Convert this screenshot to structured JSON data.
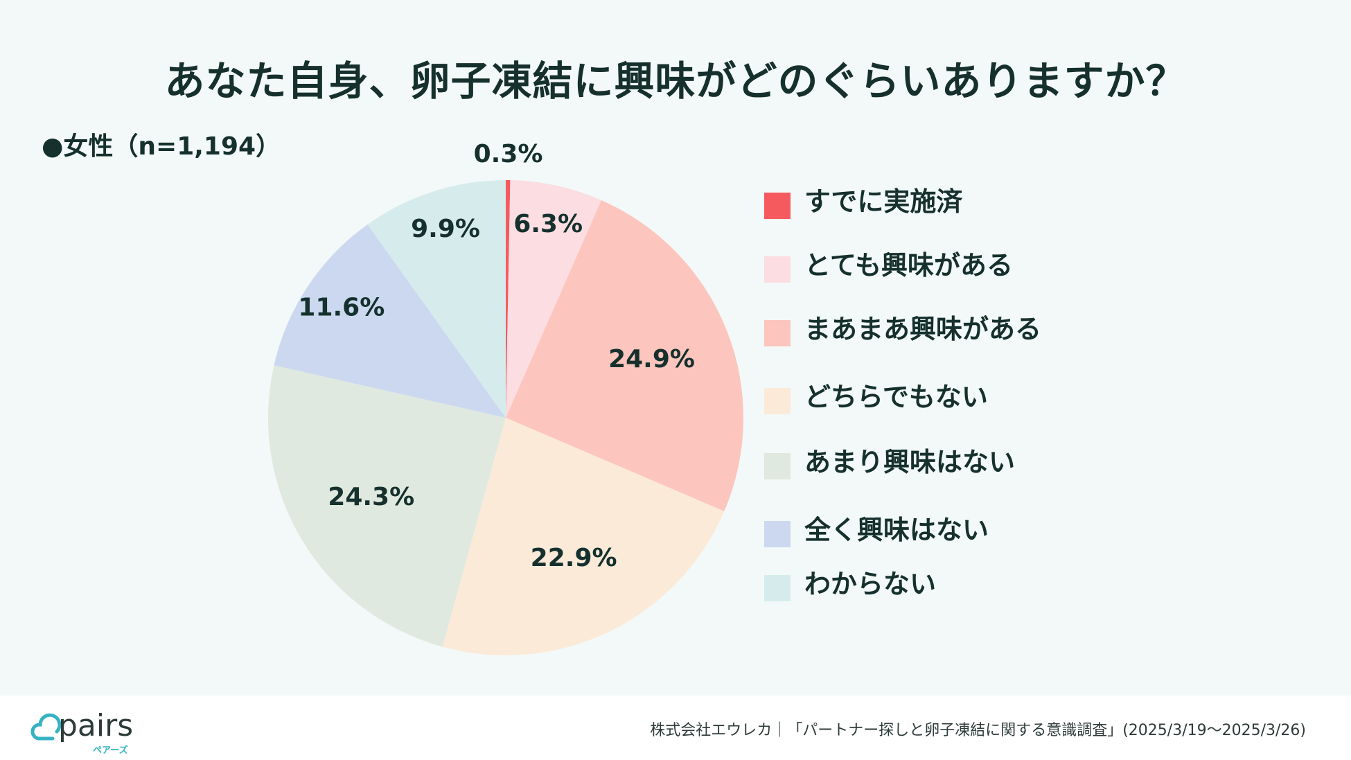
{
  "title": "あなた自身、卵子凍結に興味がどのぐらいありますか？",
  "sample_label": "●女性（n=1,194）",
  "chart_data": {
    "type": "pie",
    "title": "あなた自身、卵子凍結に興味がどのぐらいありますか？",
    "categories": [
      "すでに実施済",
      "とても興味がある",
      "まあまあ興味がある",
      "どちらでもない",
      "あまり興味はない",
      "全く興味はない",
      "わからない"
    ],
    "values": [
      0.3,
      6.3,
      24.9,
      22.9,
      24.3,
      11.6,
      9.9
    ],
    "value_labels": [
      "0.3%",
      "6.3%",
      "24.9%",
      "22.9%",
      "24.3%",
      "11.6%",
      "9.9%"
    ],
    "colors": [
      "#f55a5f",
      "#fbdde2",
      "#fcc5bd",
      "#fcead9",
      "#e0e9df",
      "#cbd8f0",
      "#d6ecec"
    ],
    "start": "12 o'clock",
    "direction": "clockwise",
    "legend_position": "right"
  },
  "legend": {
    "items": [
      {
        "label": "すでに実施済"
      },
      {
        "label": "とても興味がある"
      },
      {
        "label": "まあまあ興味がある"
      },
      {
        "label": "どちらでもない"
      },
      {
        "label": "あまり興味はない"
      },
      {
        "label": "全く興味はない"
      },
      {
        "label": "わからない"
      }
    ]
  },
  "footer": {
    "logo_text": "pairs",
    "logo_sub": "ペアーズ",
    "source": "株式会社エウレカ｜「パートナー探しと卵子凍結に関する意識調査」(2025/3/19～2025/3/26)"
  }
}
